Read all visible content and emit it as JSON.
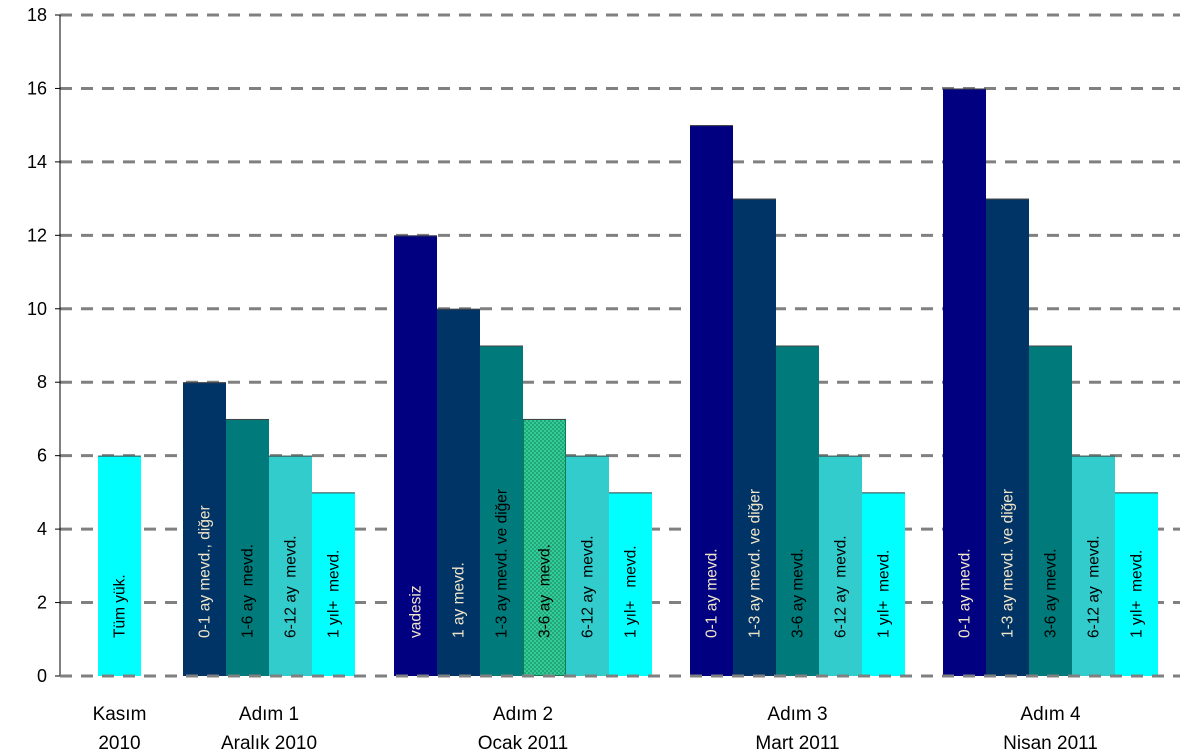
{
  "chart_data": {
    "type": "bar",
    "title": "",
    "xlabel": "",
    "ylabel": "",
    "ylim": [
      0,
      18
    ],
    "yticks": [
      0,
      2,
      4,
      6,
      8,
      10,
      12,
      14,
      16,
      18
    ],
    "grid": "horizontal dashed",
    "groups": [
      {
        "label": [
          "Kasım",
          "2010"
        ],
        "bars": [
          {
            "label": "Tüm yük.",
            "value": 6,
            "color": "#00FFFF",
            "text_color": "#000000"
          }
        ]
      },
      {
        "label": [
          "Adım 1",
          "Aralık 2010"
        ],
        "bars": [
          {
            "label": "0-1 ay mevd., diğer",
            "value": 8,
            "color": "#003366",
            "text_color": "#F2E6C9"
          },
          {
            "label": "1-6 ay  mevd.",
            "value": 7,
            "color": "#007A7A",
            "text_color": "#000000"
          },
          {
            "label": "6-12 ay  mevd.",
            "value": 6,
            "color": "#33CCCC",
            "text_color": "#000000"
          },
          {
            "label": "1 yıl+  mevd.",
            "value": 5,
            "color": "#00FFFF",
            "text_color": "#000000"
          }
        ]
      },
      {
        "label": [
          "Adım 2",
          "Ocak 2011"
        ],
        "bars": [
          {
            "label": "vadesiz",
            "value": 12,
            "color": "#000080",
            "text_color": "#F2E6C9"
          },
          {
            "label": "1 ay mevd.",
            "value": 10,
            "color": "#003366",
            "text_color": "#F2E6C9"
          },
          {
            "label": "1-3 ay mevd. ve diğer",
            "value": 9,
            "color": "#007A7A",
            "text_color": "#000000"
          },
          {
            "label": "3-6 ay  mevd.",
            "value": 7,
            "color": "#33CC99",
            "text_color": "#000000",
            "pattern": "dots"
          },
          {
            "label": "6-12 ay  mevd.",
            "value": 6,
            "color": "#33CCCC",
            "text_color": "#000000"
          },
          {
            "label": "1 yıl+   mevd.",
            "value": 5,
            "color": "#00FFFF",
            "text_color": "#000000"
          }
        ]
      },
      {
        "label": [
          "Adım 3",
          "Mart 2011"
        ],
        "bars": [
          {
            "label": "0-1 ay mevd.",
            "value": 15,
            "color": "#000080",
            "text_color": "#F2E6C9"
          },
          {
            "label": "1-3 ay mevd. ve diğer",
            "value": 13,
            "color": "#003366",
            "text_color": "#F2E6C9"
          },
          {
            "label": "3-6 ay mevd.",
            "value": 9,
            "color": "#007A7A",
            "text_color": "#000000"
          },
          {
            "label": "6-12 ay  mevd.",
            "value": 6,
            "color": "#33CCCC",
            "text_color": "#000000"
          },
          {
            "label": "1 yıl+  mevd.",
            "value": 5,
            "color": "#00FFFF",
            "text_color": "#000000"
          }
        ]
      },
      {
        "label": [
          "Adım 4",
          "Nisan 2011"
        ],
        "bars": [
          {
            "label": "0-1 ay mevd.",
            "value": 16,
            "color": "#000080",
            "text_color": "#F2E6C9"
          },
          {
            "label": "1-3 ay mevd. ve diğer",
            "value": 13,
            "color": "#003366",
            "text_color": "#F2E6C9"
          },
          {
            "label": "3-6 ay mevd.",
            "value": 9,
            "color": "#007A7A",
            "text_color": "#000000"
          },
          {
            "label": "6-12 ay  mevd.",
            "value": 6,
            "color": "#33CCCC",
            "text_color": "#000000"
          },
          {
            "label": "1 yıl+  mevd.",
            "value": 5,
            "color": "#00FFFF",
            "text_color": "#000000"
          }
        ]
      }
    ]
  }
}
